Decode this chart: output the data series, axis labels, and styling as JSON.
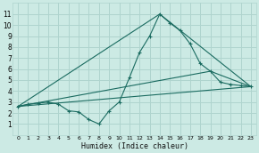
{
  "xlabel": "Humidex (Indice chaleur)",
  "bg_color": "#cceae4",
  "grid_color": "#afd4ce",
  "line_color": "#1a6b60",
  "xlim": [
    -0.5,
    23.5
  ],
  "ylim": [
    0,
    12
  ],
  "xticks": [
    0,
    1,
    2,
    3,
    4,
    5,
    6,
    7,
    8,
    9,
    10,
    11,
    12,
    13,
    14,
    15,
    16,
    17,
    18,
    19,
    20,
    21,
    22,
    23
  ],
  "yticks": [
    1,
    2,
    3,
    4,
    5,
    6,
    7,
    8,
    9,
    10,
    11
  ],
  "curve1_x": [
    0,
    1,
    2,
    3,
    4,
    5,
    6,
    7,
    8,
    9,
    10,
    11,
    12,
    13,
    14,
    15,
    16,
    17,
    18,
    19,
    20,
    21,
    22,
    23
  ],
  "curve1_y": [
    2.6,
    2.8,
    2.9,
    3.0,
    2.8,
    2.2,
    2.1,
    1.4,
    1.0,
    2.2,
    3.0,
    5.2,
    7.5,
    9.0,
    11.0,
    10.2,
    9.5,
    8.3,
    6.5,
    5.8,
    4.8,
    4.6,
    4.5,
    4.4
  ],
  "curve2_x": [
    0,
    23
  ],
  "curve2_y": [
    2.6,
    4.4
  ],
  "curve3_x": [
    0,
    14,
    23
  ],
  "curve3_y": [
    2.6,
    11.0,
    4.4
  ],
  "curve4_x": [
    0,
    19,
    23
  ],
  "curve4_y": [
    2.6,
    5.8,
    4.4
  ]
}
